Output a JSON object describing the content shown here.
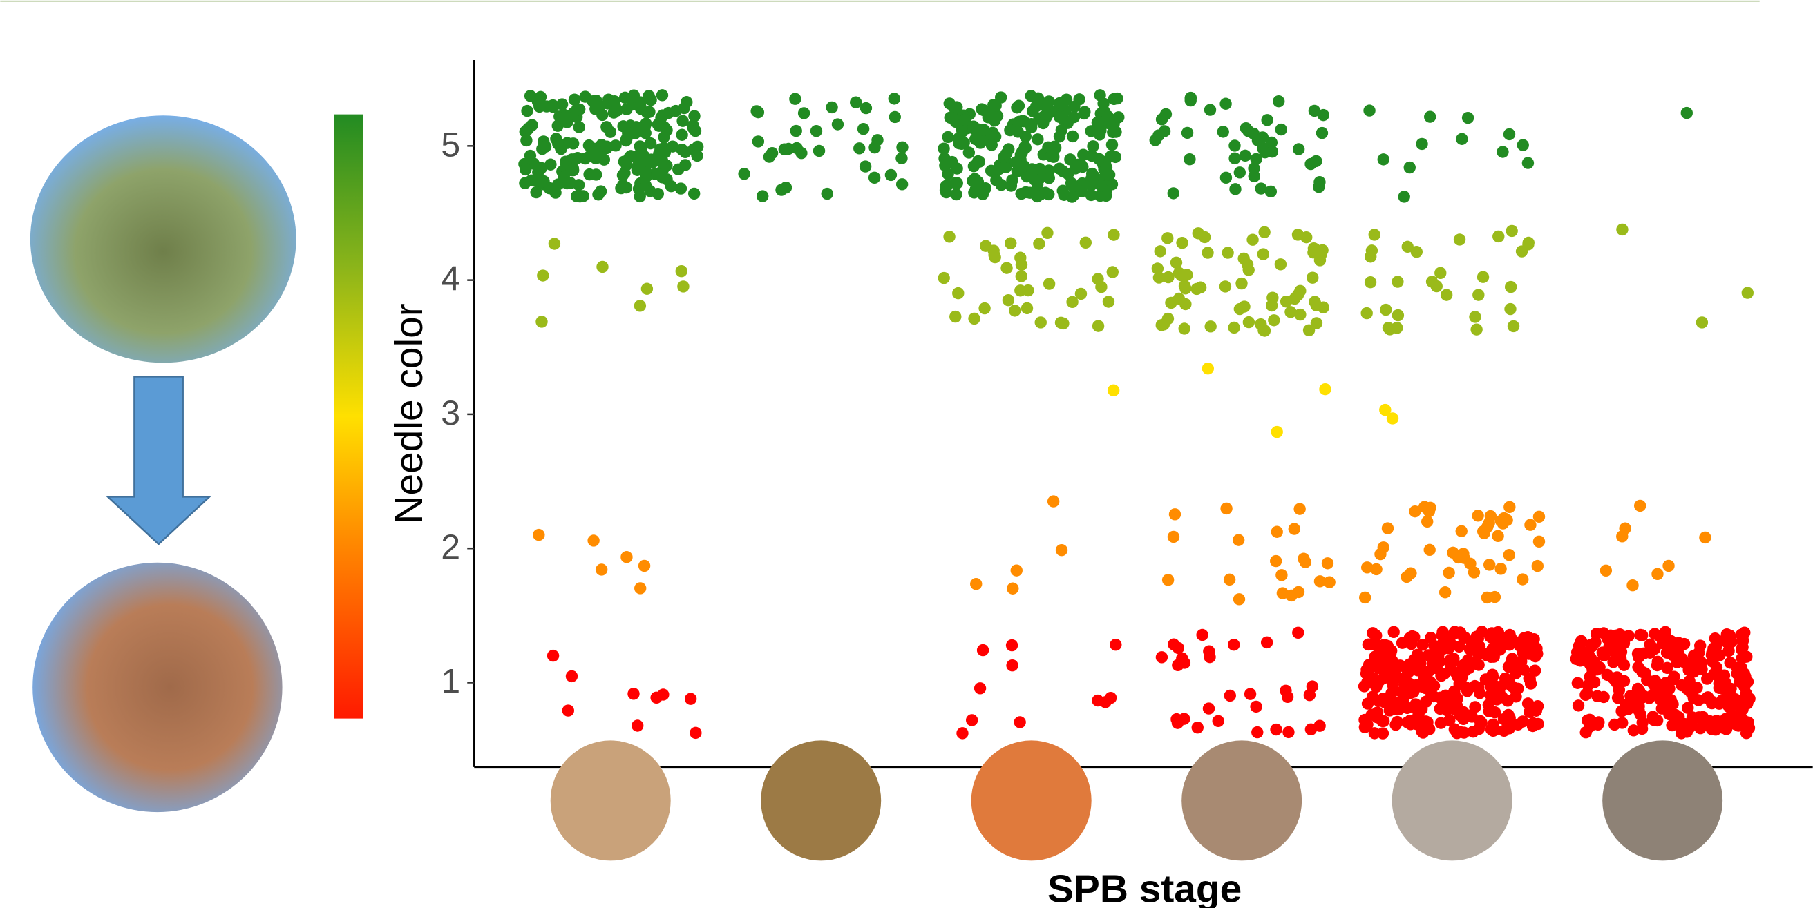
{
  "chart_data": {
    "type": "strip",
    "x_label": "SPB stage",
    "y_label": "Needle color",
    "categories": [
      null,
      null,
      null,
      null,
      null,
      null
    ],
    "ylim": [
      0.37,
      5.64
    ],
    "yticks": [
      1,
      2,
      3,
      4,
      5
    ],
    "series": [
      {
        "y": 5,
        "color": "#228b22",
        "values": [
          200,
          35,
          220,
          45,
          12,
          1
        ]
      },
      {
        "y": 4,
        "color": "#9aba1a",
        "values": [
          8,
          0,
          35,
          65,
          30,
          3
        ]
      },
      {
        "y": 3,
        "color": "#ffe000",
        "values": [
          0,
          0,
          1,
          3,
          2,
          0
        ]
      },
      {
        "y": 2,
        "color": "#ff8c00",
        "values": [
          6,
          0,
          5,
          20,
          45,
          8
        ]
      },
      {
        "y": 1,
        "color": "#ff0000",
        "values": [
          9,
          0,
          11,
          30,
          300,
          250
        ]
      }
    ]
  }
}
